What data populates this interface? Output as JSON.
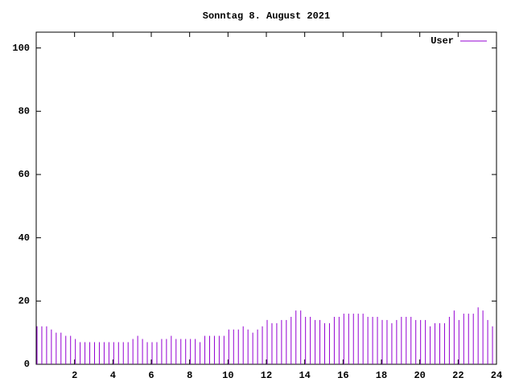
{
  "chart_data": {
    "type": "impulse",
    "title": "Sonntag 8. August 2021",
    "xlim": [
      0,
      24
    ],
    "xticks": [
      2,
      4,
      6,
      8,
      10,
      12,
      14,
      16,
      18,
      20,
      22,
      24
    ],
    "ylim": [
      0,
      105
    ],
    "yticks": [
      0,
      20,
      40,
      60,
      80,
      100
    ],
    "legend": "top-right",
    "x": [
      0,
      0.25,
      0.5,
      0.75,
      1,
      1.25,
      1.5,
      1.75,
      2,
      2.25,
      2.5,
      2.75,
      3,
      3.25,
      3.5,
      3.75,
      4,
      4.25,
      4.5,
      4.75,
      5,
      5.25,
      5.5,
      5.75,
      6,
      6.25,
      6.5,
      6.75,
      7,
      7.25,
      7.5,
      7.75,
      8,
      8.25,
      8.5,
      8.75,
      9,
      9.25,
      9.5,
      9.75,
      10,
      10.25,
      10.5,
      10.75,
      11,
      11.25,
      11.5,
      11.75,
      12,
      12.25,
      12.5,
      12.75,
      13,
      13.25,
      13.5,
      13.75,
      14,
      14.25,
      14.5,
      14.75,
      15,
      15.25,
      15.5,
      15.75,
      16,
      16.25,
      16.5,
      16.75,
      17,
      17.25,
      17.5,
      17.75,
      18,
      18.25,
      18.5,
      18.75,
      19,
      19.25,
      19.5,
      19.75,
      20,
      20.25,
      20.5,
      20.75,
      21,
      21.25,
      21.5,
      21.75,
      22,
      22.25,
      22.5,
      22.75,
      23,
      23.25,
      23.5,
      23.75
    ],
    "series": [
      {
        "name": "User",
        "color": "#9400d3",
        "values": [
          12,
          12,
          12,
          11,
          10,
          10,
          9,
          9,
          8,
          7,
          7,
          7,
          7,
          7,
          7,
          7,
          7,
          7,
          7,
          7,
          8,
          9,
          8,
          7,
          7,
          7,
          8,
          8,
          9,
          8,
          8,
          8,
          8,
          8,
          7,
          9,
          9,
          9,
          9,
          9,
          11,
          11,
          11,
          12,
          11,
          10,
          11,
          12,
          14,
          13,
          13,
          14,
          14,
          15,
          17,
          17,
          15,
          15,
          14,
          14,
          13,
          13,
          15,
          15,
          16,
          16,
          16,
          16,
          16,
          15,
          15,
          15,
          14,
          14,
          13,
          14,
          15,
          15,
          15,
          14,
          14,
          14,
          12,
          13,
          13,
          13,
          15,
          17,
          14,
          16,
          16,
          16,
          18,
          17,
          14,
          12
        ]
      }
    ]
  }
}
